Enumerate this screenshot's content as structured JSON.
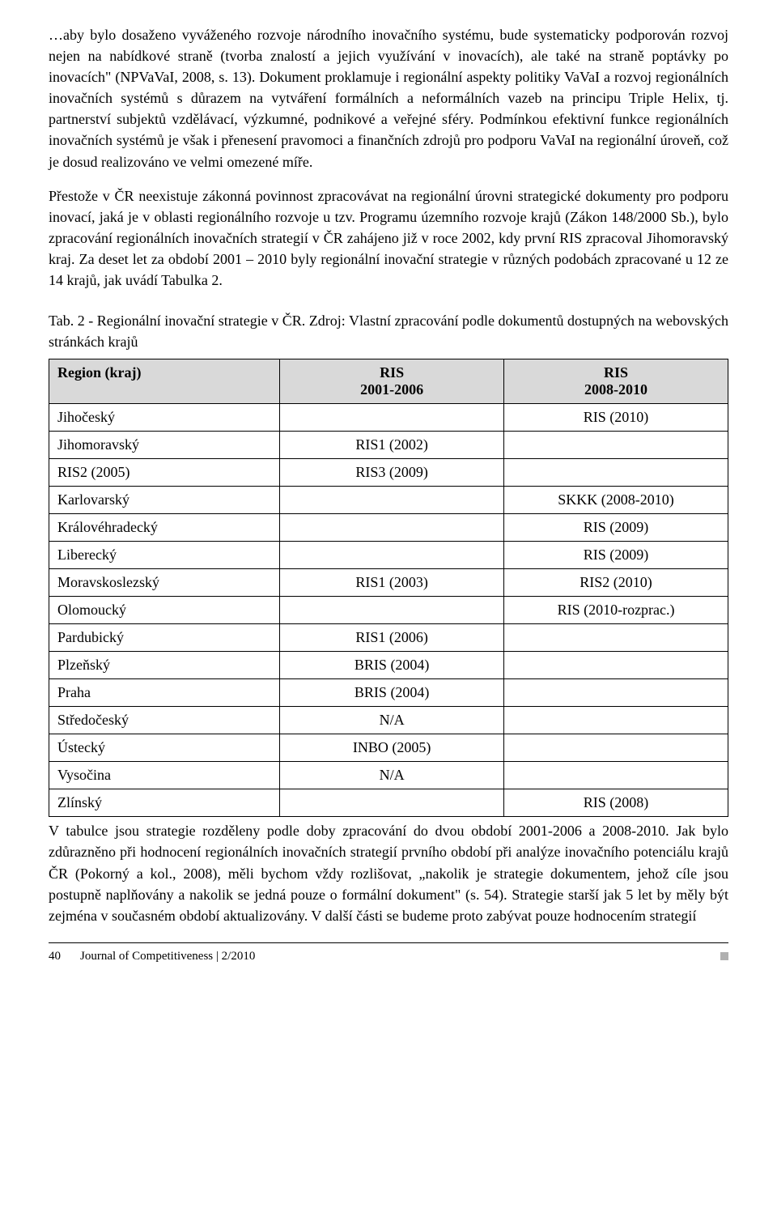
{
  "paragraph1": "…aby bylo dosaženo vyváženého rozvoje národního inovačního systému, bude systematicky podporován rozvoj nejen na nabídkové straně (tvorba znalostí a jejich využívání v inovacích), ale také na straně poptávky po inovacích\" (NPVaVaI, 2008, s. 13). Dokument proklamuje i regionální aspekty politiky VaVaI a rozvoj regionálních inovačních systémů s důrazem na vytváření formálních a neformálních vazeb na principu Triple Helix, tj. partnerství subjektů vzdělávací, výzkumné, podnikové a veřejné sféry. Podmínkou efektivní funkce regionálních inovačních systémů je však i přenesení pravomoci a finančních zdrojů pro podporu VaVaI na regionální úroveň, což je dosud realizováno ve velmi omezené míře.",
  "paragraph2": "Přestože v ČR neexistuje zákonná povinnost zpracovávat na regionální úrovni strategické dokumenty pro podporu inovací, jaká je v oblasti regionálního rozvoje u tzv. Programu územního rozvoje krajů (Zákon 148/2000 Sb.), bylo zpracování regionálních inovačních strategií v ČR zahájeno již v roce 2002, kdy první RIS zpracoval Jihomoravský kraj. Za deset let za období 2001 – 2010 byly regionální inovační strategie v různých podobách zpracované u 12 ze 14 krajů, jak uvádí Tabulka 2.",
  "tableCaption": "Tab. 2 - Regionální inovační strategie v ČR. Zdroj: Vlastní zpracování podle dokumentů dostupných na webovských stránkách krajů",
  "headers": {
    "region": "Region (kraj)",
    "col1a": "RIS",
    "col1b": "2001-2006",
    "col2a": "RIS",
    "col2b": "2008-2010"
  },
  "rows": [
    {
      "region": "Jihočeský",
      "c1": "",
      "c2": "RIS (2010)"
    },
    {
      "region": "Jihomoravský",
      "c1": "RIS1 (2002)",
      "c2": ""
    },
    {
      "region": "RIS2 (2005)",
      "c1": "RIS3 (2009)",
      "c2": ""
    },
    {
      "region": "Karlovarský",
      "c1": "",
      "c2": "SKKK (2008-2010)"
    },
    {
      "region": "Královéhradecký",
      "c1": "",
      "c2": "RIS (2009)"
    },
    {
      "region": "Liberecký",
      "c1": "",
      "c2": "RIS (2009)"
    },
    {
      "region": "Moravskoslezský",
      "c1": "RIS1 (2003)",
      "c2": "RIS2 (2010)"
    },
    {
      "region": "Olomoucký",
      "c1": "",
      "c2": "RIS (2010-rozprac.)"
    },
    {
      "region": "Pardubický",
      "c1": "RIS1 (2006)",
      "c2": ""
    },
    {
      "region": "Plzeňský",
      "c1": "BRIS (2004)",
      "c2": ""
    },
    {
      "region": "Praha",
      "c1": "BRIS (2004)",
      "c2": ""
    },
    {
      "region": "Středočeský",
      "c1": "N/A",
      "c2": ""
    },
    {
      "region": "Ústecký",
      "c1": "INBO (2005)",
      "c2": ""
    },
    {
      "region": "Vysočina",
      "c1": "N/A",
      "c2": ""
    },
    {
      "region": "Zlínský",
      "c1": "",
      "c2": "RIS (2008)"
    }
  ],
  "postTable": "V tabulce jsou strategie rozděleny podle doby zpracování do dvou období 2001-2006 a 2008-2010. Jak bylo zdůrazněno při hodnocení regionálních inovačních strategií prvního období při analýze inovačního potenciálu krajů ČR (Pokorný a kol., 2008), měli bychom vždy rozlišovat, „nakolik je strategie dokumentem, jehož cíle jsou postupně naplňovány a nakolik se jedná pouze o formální dokument\" (s. 54). Strategie starší jak 5 let by měly být zejména v současném období aktualizovány. V další části se budeme proto zabývat pouze hodnocením strategií",
  "footer": {
    "pageNumber": "40",
    "journal": "Journal of Competitiveness   |   2/2010"
  }
}
